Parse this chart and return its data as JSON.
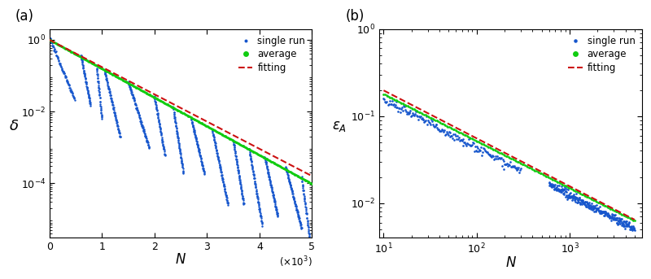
{
  "panel_a": {
    "xlim": [
      0,
      5000
    ],
    "ylim": [
      3e-06,
      2.0
    ],
    "xticks": [
      0,
      1000,
      2000,
      3000,
      4000,
      5000
    ],
    "xtick_labels": [
      "0",
      "1",
      "2",
      "3",
      "4",
      "5"
    ],
    "single_run_color": "#1555cc",
    "average_color": "#11cc11",
    "fitting_color": "#cc1111",
    "decay_rate": 0.00185,
    "fitting_decay_rate": 0.00175
  },
  "panel_b": {
    "xlim": [
      9,
      6000
    ],
    "ylim": [
      0.004,
      0.8
    ],
    "single_run_color": "#1555cc",
    "average_color": "#11cc11",
    "fitting_color": "#cc1111",
    "power_law_exp": -0.55,
    "power_law_coeff": 0.55
  },
  "legend": {
    "single_run": "single run",
    "average": "average",
    "fitting": "fitting"
  }
}
